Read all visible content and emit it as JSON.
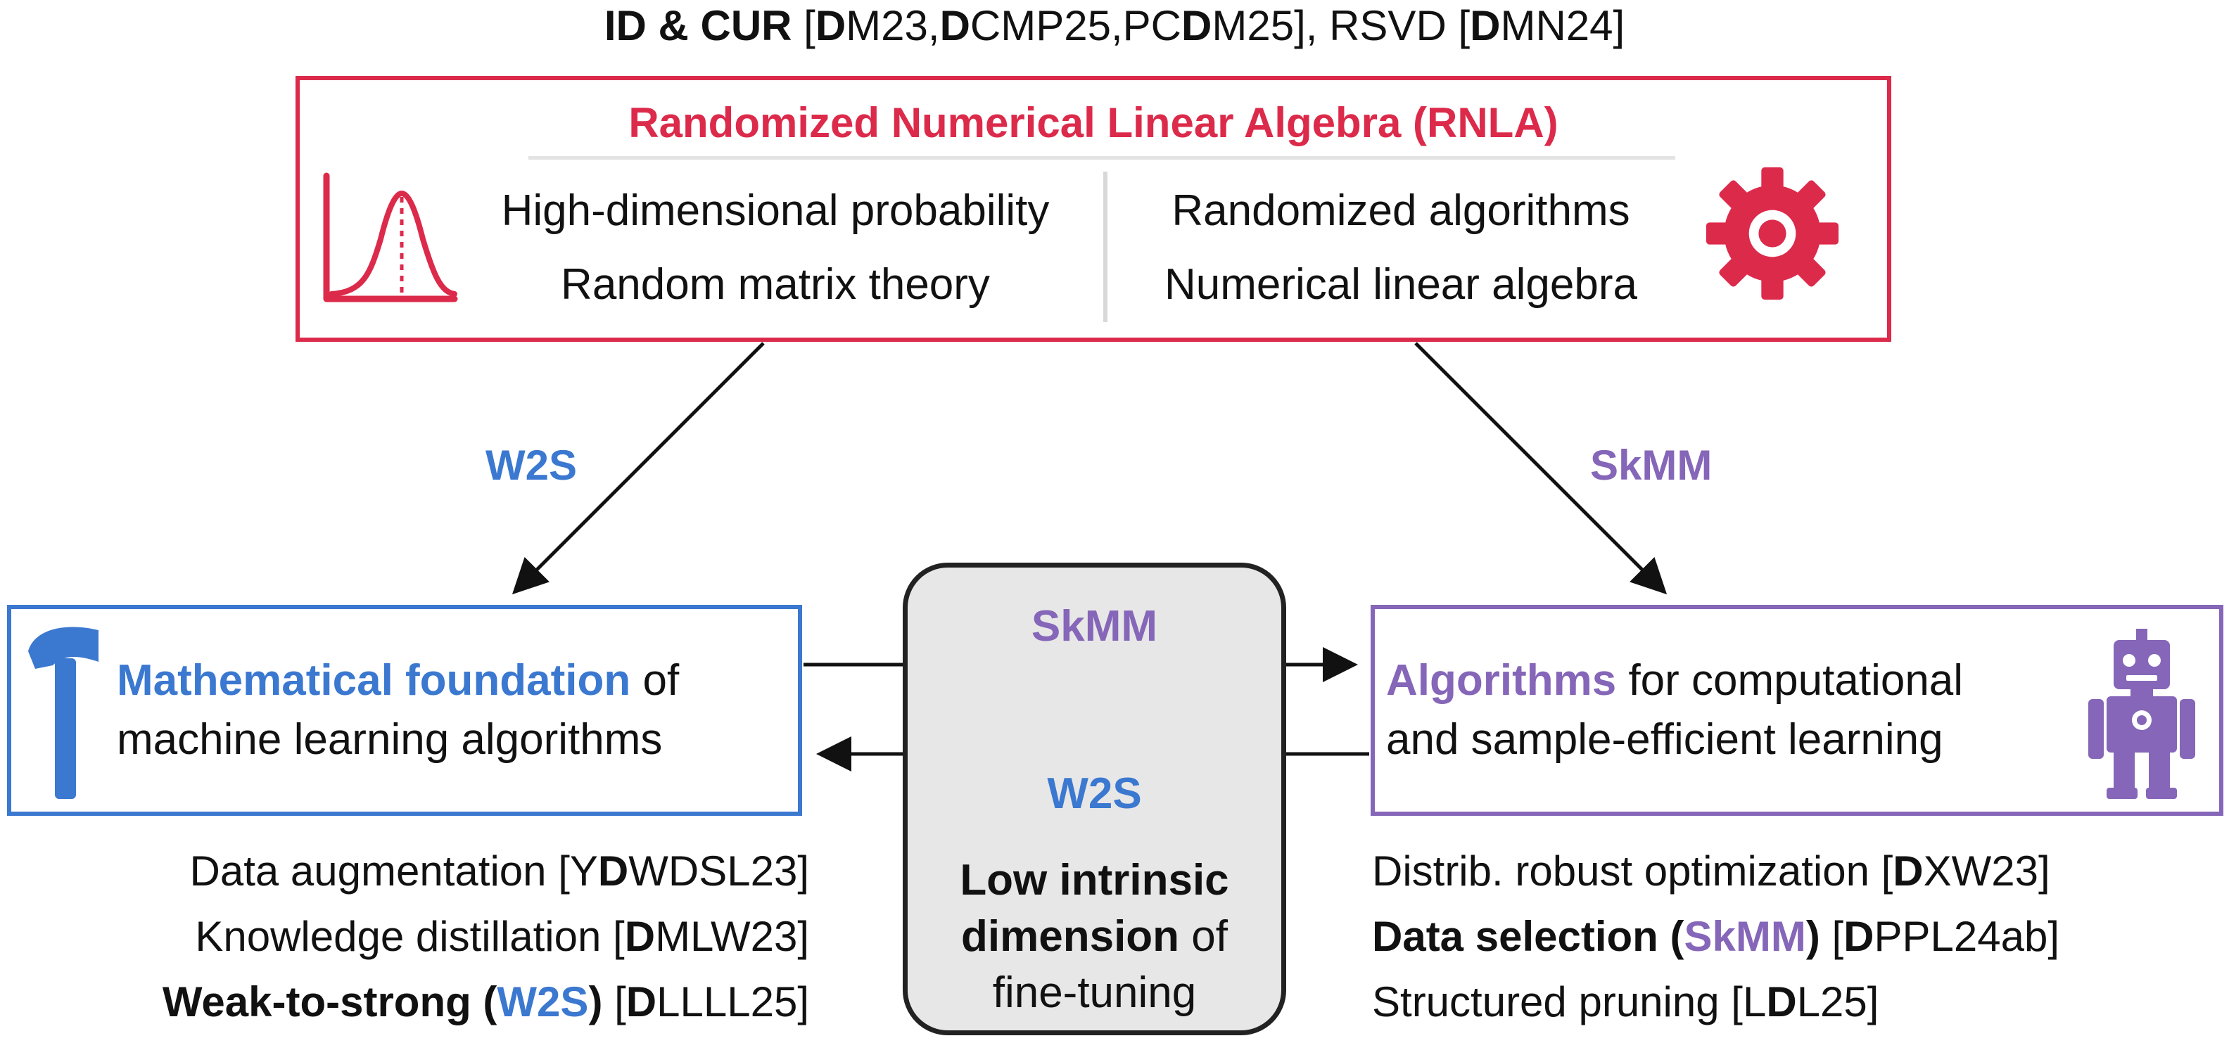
{
  "colors": {
    "red": "#dc2a4b",
    "blue": "#3b78d0",
    "purple": "#8566b8",
    "gray_box": "#e7e7e7"
  },
  "header": {
    "id_cur": "ID & CUR",
    "ref_open": " [",
    "refs_a": [
      {
        "bold": "D",
        "rest": "M23,"
      },
      {
        "bold": "D",
        "rest": "CMP25,PC"
      },
      {
        "bold": "D",
        "rest": "M25], RSVD ["
      },
      {
        "bold": "D",
        "rest": "MN24]"
      }
    ]
  },
  "rnla": {
    "title": "Randomized Numerical Linear Algebra (RNLA)",
    "left_lines": [
      "High-dimensional probability",
      "Random matrix theory"
    ],
    "right_lines": [
      "Randomized algorithms",
      "Numerical linear algebra"
    ],
    "left_icon": "bell-curve-icon",
    "right_icon": "gear-icon"
  },
  "arrow_labels": {
    "left": "W2S",
    "right": "SkMM"
  },
  "math": {
    "title_colored": "Mathematical foundation",
    "title_rest": " of",
    "line2": "machine learning algorithms",
    "icon": "hammer-icon"
  },
  "algo": {
    "title_colored": "Algorithms",
    "title_rest": " for computational",
    "line2": "and sample-efficient learning",
    "icon": "robot-icon"
  },
  "center": {
    "skmm": "SkMM",
    "w2s": "W2S",
    "bold1": "Low intrinsic",
    "bold2": "dimension",
    "rest2": " of",
    "line3": "fine-tuning"
  },
  "left_refs": [
    {
      "pre": "Data augmentation [Y",
      "bold": "D",
      "post": "WDSL23]"
    },
    {
      "pre": "Knowledge distillation [",
      "bold": "D",
      "post": "MLW23]"
    },
    {
      "pre_bold": "Weak-to-strong (",
      "colored": "W2S",
      "post_bold": ")",
      "pre": " [",
      "bold": "D",
      "post": "LLLL25]"
    }
  ],
  "right_refs": [
    {
      "pre": "Distrib. robust optimization [",
      "bold": "D",
      "post": "XW23]"
    },
    {
      "pre_bold": "Data selection (",
      "colored": "SkMM",
      "post_bold": ")",
      "pre": " [",
      "bold": "D",
      "post": "PPL24ab]"
    },
    {
      "pre": "Structured pruning [L",
      "bold": "D",
      "post": "L25]"
    }
  ]
}
